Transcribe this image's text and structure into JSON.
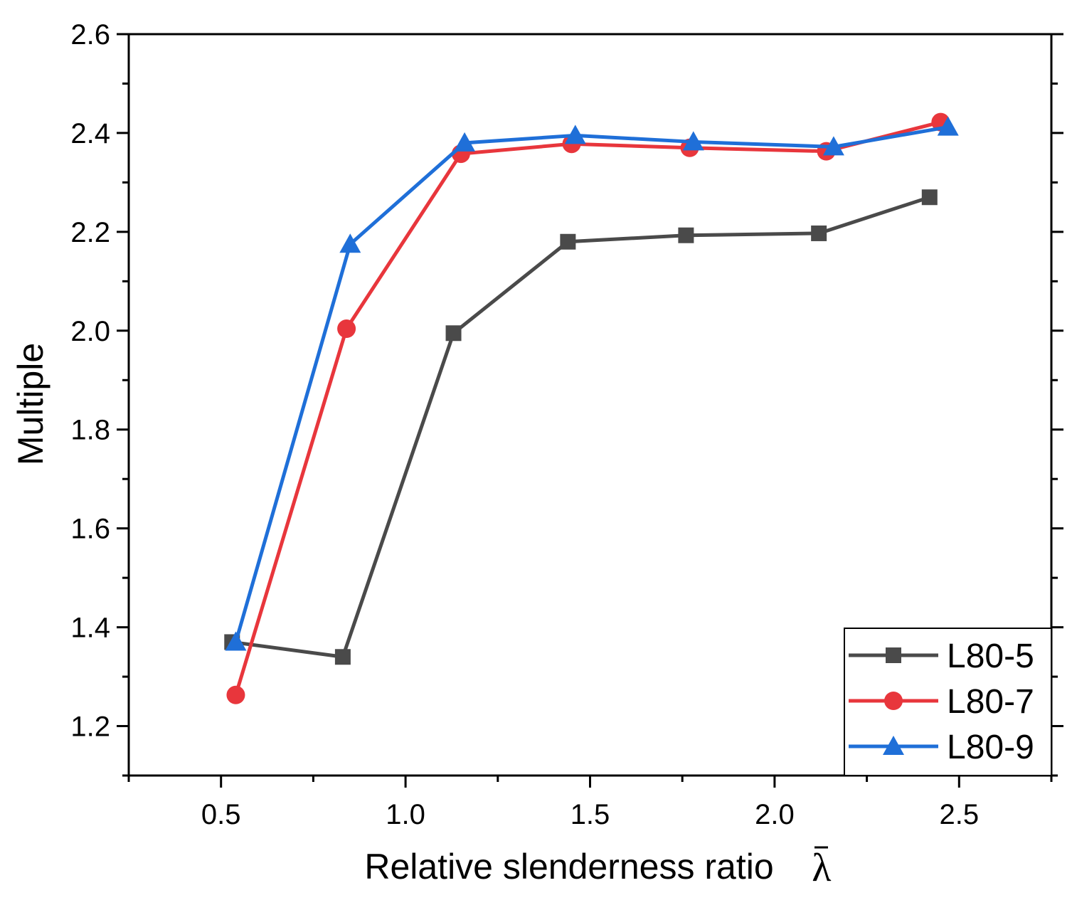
{
  "chart_data": {
    "type": "line",
    "xlabel": "Relative slenderness ratio",
    "xlabel_symbol": "λ",
    "ylabel": "Multiple",
    "xlim": [
      0.25,
      2.75
    ],
    "ylim": [
      1.1,
      2.6
    ],
    "xticks": [
      0.5,
      1.0,
      1.5,
      2.0,
      2.5
    ],
    "xtick_labels": [
      "0.5",
      "1.0",
      "1.5",
      "2.0",
      "2.5"
    ],
    "yticks": [
      1.2,
      1.4,
      1.6,
      1.8,
      2.0,
      2.2,
      2.4,
      2.6
    ],
    "ytick_labels": [
      "1.2",
      "1.4",
      "1.6",
      "1.8",
      "2.0",
      "2.2",
      "2.4",
      "2.6"
    ],
    "legend_position": "bottom-right",
    "series": [
      {
        "name": "L80-5",
        "color": "#4a4a4a",
        "marker": "square",
        "x": [
          0.53,
          0.83,
          1.13,
          1.44,
          1.76,
          2.12,
          2.42
        ],
        "y": [
          1.37,
          1.34,
          1.995,
          2.18,
          2.193,
          2.197,
          2.27
        ]
      },
      {
        "name": "L80-7",
        "color": "#e8363c",
        "marker": "circle",
        "x": [
          0.54,
          0.84,
          1.15,
          1.45,
          1.77,
          2.14,
          2.45
        ],
        "y": [
          1.263,
          2.004,
          2.358,
          2.378,
          2.37,
          2.363,
          2.422
        ]
      },
      {
        "name": "L80-9",
        "color": "#1f6fd8",
        "marker": "triangle",
        "x": [
          0.54,
          0.85,
          1.16,
          1.46,
          1.78,
          2.16,
          2.47
        ],
        "y": [
          1.37,
          2.175,
          2.38,
          2.395,
          2.382,
          2.372,
          2.412
        ]
      }
    ]
  }
}
